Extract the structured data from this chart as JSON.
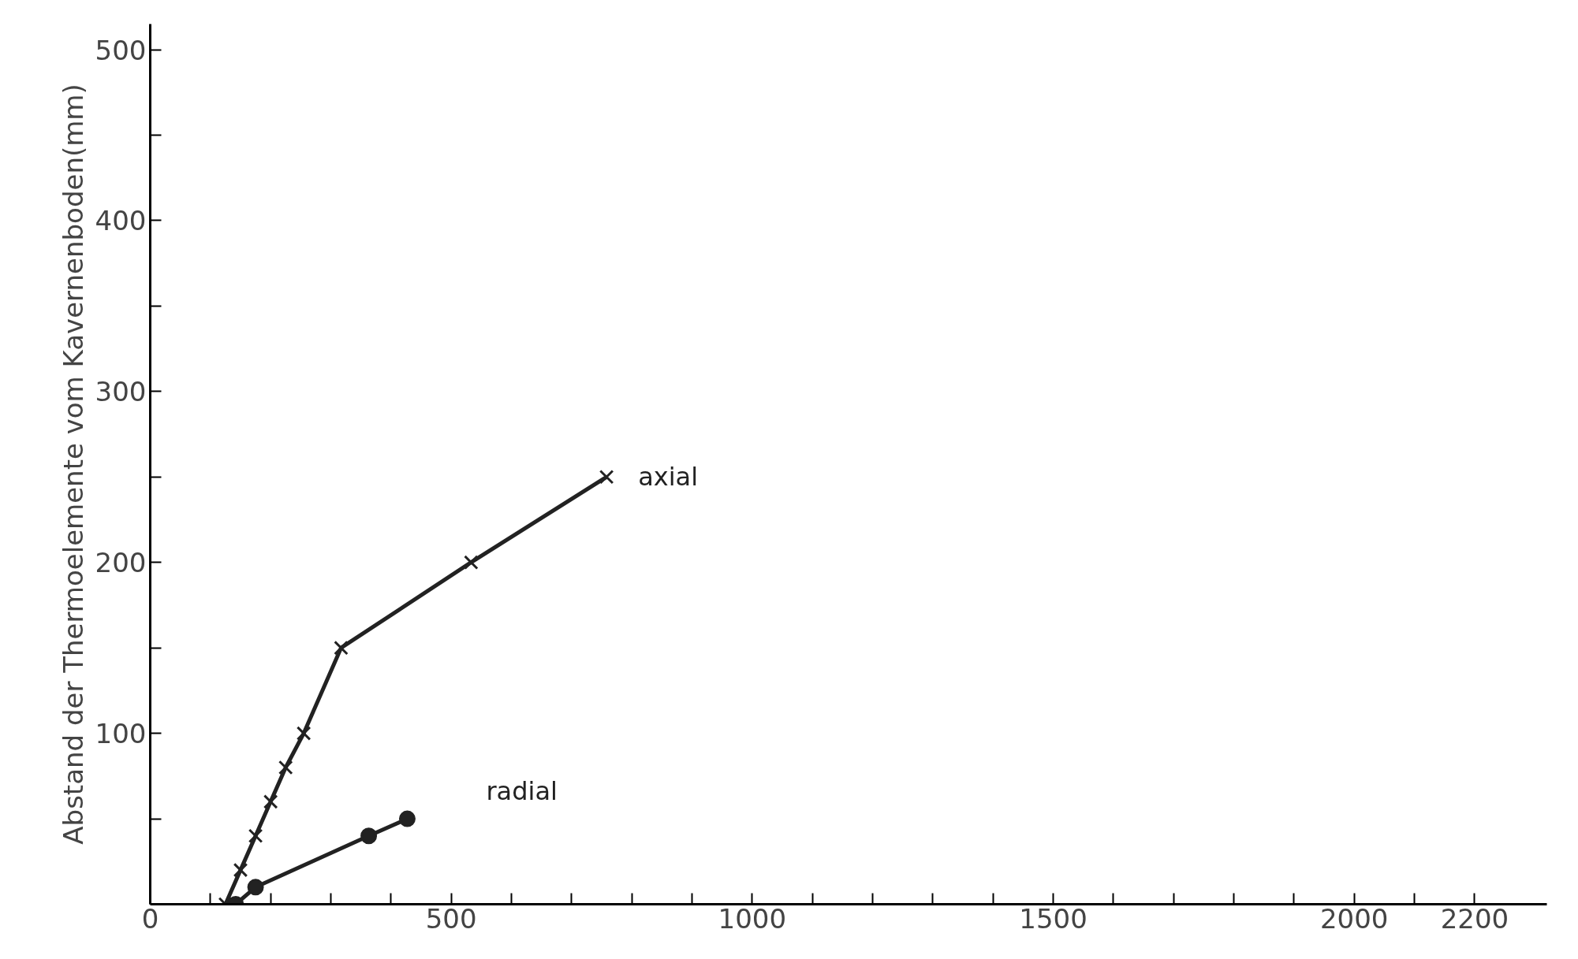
{
  "chart_data": {
    "type": "line",
    "ylabel": "Abstand der Thermoelemente vom Kavernenboden(mm)",
    "xlim": [
      0,
      2320
    ],
    "ylim": [
      0,
      515
    ],
    "xticks": [
      0,
      {
        "value": 100,
        "label": null
      },
      {
        "value": 200,
        "label": null
      },
      {
        "value": 300,
        "label": null
      },
      {
        "value": 400,
        "label": null
      },
      500,
      {
        "value": 600,
        "label": null
      },
      {
        "value": 700,
        "label": null
      },
      {
        "value": 800,
        "label": null
      },
      {
        "value": 900,
        "label": null
      },
      1000,
      {
        "value": 1100,
        "label": null
      },
      {
        "value": 1200,
        "label": null
      },
      {
        "value": 1300,
        "label": null
      },
      {
        "value": 1400,
        "label": null
      },
      1500,
      {
        "value": 1600,
        "label": null
      },
      {
        "value": 1700,
        "label": null
      },
      {
        "value": 1800,
        "label": null
      },
      {
        "value": 1900,
        "label": null
      },
      2000,
      {
        "value": 2100,
        "label": null
      },
      2200
    ],
    "yticks": [
      {
        "value": 50,
        "label": null
      },
      100,
      {
        "value": 150,
        "label": null
      },
      200,
      {
        "value": 250,
        "label": null
      },
      300,
      {
        "value": 350,
        "label": null
      },
      400,
      {
        "value": 450,
        "label": null
      },
      500
    ],
    "grid": false,
    "line_style": "solid",
    "series": [
      {
        "name": "axial",
        "color": "#222222",
        "marker": "cross",
        "x": [
          125,
          150,
          175,
          200,
          225,
          255,
          317,
          533,
          758
        ],
        "values": [
          0,
          20,
          40,
          60,
          80,
          100,
          150,
          200,
          250
        ]
      },
      {
        "name": "radial",
        "color": "#222222",
        "marker": "circle",
        "x": [
          142,
          175,
          363,
          427
        ],
        "values": [
          0,
          10,
          40,
          50
        ]
      }
    ]
  }
}
